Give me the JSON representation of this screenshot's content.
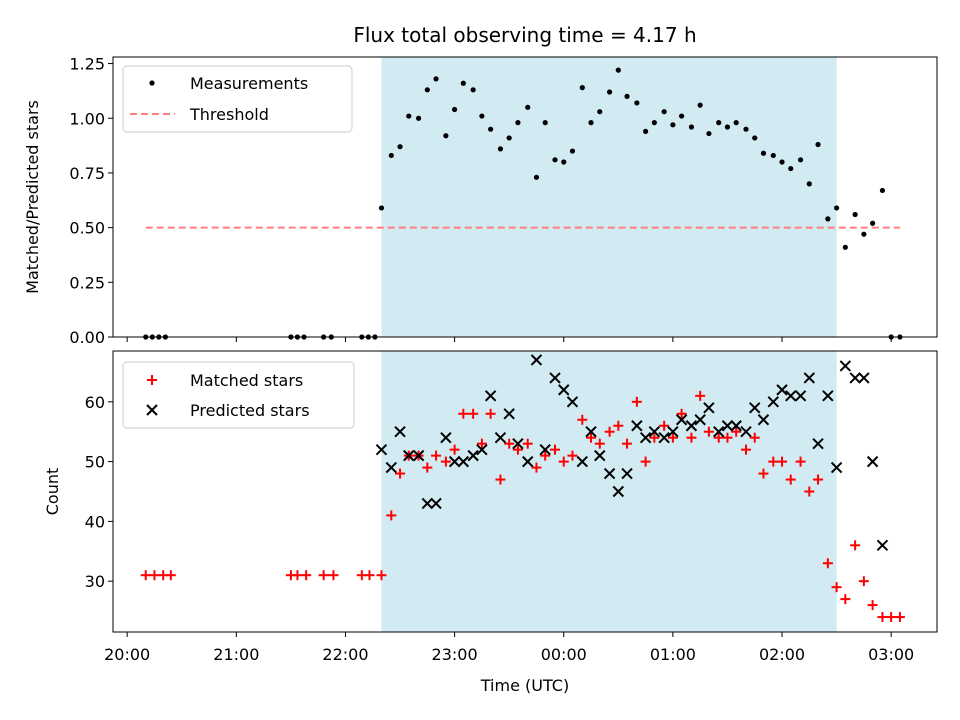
{
  "chart_data": {
    "type": "scatter",
    "title": "Flux total observing time = 4.17 h",
    "xlabel": "Time (UTC)",
    "x_unit": "hours relative to 00:00 UTC",
    "x_ticks": [
      {
        "value": -4,
        "label": "20:00"
      },
      {
        "value": -3,
        "label": "21:00"
      },
      {
        "value": -2,
        "label": "22:00"
      },
      {
        "value": -1,
        "label": "23:00"
      },
      {
        "value": 0,
        "label": "00:00"
      },
      {
        "value": 1,
        "label": "01:00"
      },
      {
        "value": 2,
        "label": "02:00"
      },
      {
        "value": 3,
        "label": "03:00"
      }
    ],
    "xlim": [
      -4.13,
      3.42
    ],
    "shaded_interval": {
      "start": -1.67,
      "end": 2.5,
      "color": "#add8e6"
    },
    "panels": [
      {
        "ylabel": "Matched/Predicted stars",
        "ylim": [
          0,
          1.28
        ],
        "y_ticks": [
          "0.00",
          "0.25",
          "0.50",
          "0.75",
          "1.00",
          "1.25"
        ],
        "y_tick_values": [
          0,
          0.25,
          0.5,
          0.75,
          1.0,
          1.25
        ],
        "legend": {
          "position": "top-left"
        },
        "series": [
          {
            "name": "Measurements",
            "marker": "dot",
            "color": "#000000",
            "points": [
              [
                -3.83,
                0
              ],
              [
                -3.77,
                0
              ],
              [
                -3.71,
                0
              ],
              [
                -3.65,
                0
              ],
              [
                -2.5,
                0
              ],
              [
                -2.44,
                0
              ],
              [
                -2.38,
                0
              ],
              [
                -2.2,
                0
              ],
              [
                -2.13,
                0
              ],
              [
                -1.85,
                0
              ],
              [
                -1.79,
                0
              ],
              [
                -1.73,
                0
              ],
              [
                -1.67,
                0.59
              ],
              [
                -1.58,
                0.83
              ],
              [
                -1.5,
                0.87
              ],
              [
                -1.42,
                1.01
              ],
              [
                -1.33,
                1.0
              ],
              [
                -1.25,
                1.13
              ],
              [
                -1.17,
                1.18
              ],
              [
                -1.08,
                0.92
              ],
              [
                -1.0,
                1.04
              ],
              [
                -0.92,
                1.16
              ],
              [
                -0.83,
                1.13
              ],
              [
                -0.75,
                1.01
              ],
              [
                -0.67,
                0.95
              ],
              [
                -0.58,
                0.86
              ],
              [
                -0.5,
                0.91
              ],
              [
                -0.42,
                0.98
              ],
              [
                -0.33,
                1.05
              ],
              [
                -0.25,
                0.73
              ],
              [
                -0.17,
                0.98
              ],
              [
                -0.08,
                0.81
              ],
              [
                0.0,
                0.8
              ],
              [
                0.08,
                0.85
              ],
              [
                0.17,
                1.14
              ],
              [
                0.25,
                0.98
              ],
              [
                0.33,
                1.03
              ],
              [
                0.42,
                1.12
              ],
              [
                0.5,
                1.22
              ],
              [
                0.58,
                1.1
              ],
              [
                0.67,
                1.07
              ],
              [
                0.75,
                0.94
              ],
              [
                0.83,
                0.98
              ],
              [
                0.92,
                1.03
              ],
              [
                1.0,
                0.97
              ],
              [
                1.08,
                1.01
              ],
              [
                1.17,
                0.96
              ],
              [
                1.25,
                1.06
              ],
              [
                1.33,
                0.93
              ],
              [
                1.42,
                0.98
              ],
              [
                1.5,
                0.96
              ],
              [
                1.58,
                0.98
              ],
              [
                1.67,
                0.95
              ],
              [
                1.75,
                0.91
              ],
              [
                1.83,
                0.84
              ],
              [
                1.92,
                0.83
              ],
              [
                2.0,
                0.8
              ],
              [
                2.08,
                0.77
              ],
              [
                2.17,
                0.81
              ],
              [
                2.25,
                0.7
              ],
              [
                2.33,
                0.88
              ],
              [
                2.42,
                0.54
              ],
              [
                2.5,
                0.59
              ],
              [
                2.58,
                0.41
              ],
              [
                2.67,
                0.56
              ],
              [
                2.75,
                0.47
              ],
              [
                2.83,
                0.52
              ],
              [
                2.92,
                0.67
              ],
              [
                3.0,
                0
              ],
              [
                3.08,
                0
              ]
            ]
          },
          {
            "name": "Threshold",
            "type": "line",
            "style": "dashed",
            "color": "#ff7f7f",
            "points": [
              [
                -3.83,
                0.5
              ],
              [
                3.08,
                0.5
              ]
            ]
          }
        ]
      },
      {
        "ylabel": "Count",
        "ylim": [
          21.5,
          68.5
        ],
        "y_ticks": [
          "30",
          "40",
          "50",
          "60"
        ],
        "y_tick_values": [
          30,
          40,
          50,
          60
        ],
        "legend": {
          "position": "top-left"
        },
        "series": [
          {
            "name": "Matched stars",
            "marker": "plus",
            "color": "#ff0000",
            "points": [
              [
                -3.83,
                31
              ],
              [
                -3.75,
                31
              ],
              [
                -3.67,
                31
              ],
              [
                -3.6,
                31
              ],
              [
                -2.5,
                31
              ],
              [
                -2.44,
                31
              ],
              [
                -2.36,
                31
              ],
              [
                -2.2,
                31
              ],
              [
                -2.11,
                31
              ],
              [
                -1.85,
                31
              ],
              [
                -1.78,
                31
              ],
              [
                -1.67,
                31
              ],
              [
                -1.58,
                41
              ],
              [
                -1.5,
                48
              ],
              [
                -1.42,
                51
              ],
              [
                -1.33,
                51
              ],
              [
                -1.25,
                49
              ],
              [
                -1.17,
                51
              ],
              [
                -1.08,
                50
              ],
              [
                -1.0,
                52
              ],
              [
                -0.92,
                58
              ],
              [
                -0.83,
                58
              ],
              [
                -0.75,
                53
              ],
              [
                -0.67,
                58
              ],
              [
                -0.58,
                47
              ],
              [
                -0.5,
                53
              ],
              [
                -0.42,
                52
              ],
              [
                -0.33,
                53
              ],
              [
                -0.25,
                49
              ],
              [
                -0.17,
                51
              ],
              [
                -0.08,
                52
              ],
              [
                0.0,
                50
              ],
              [
                0.08,
                51
              ],
              [
                0.17,
                57
              ],
              [
                0.25,
                54
              ],
              [
                0.33,
                53
              ],
              [
                0.42,
                55
              ],
              [
                0.5,
                56
              ],
              [
                0.58,
                53
              ],
              [
                0.67,
                60
              ],
              [
                0.75,
                50
              ],
              [
                0.83,
                54
              ],
              [
                0.92,
                56
              ],
              [
                1.0,
                54
              ],
              [
                1.08,
                58
              ],
              [
                1.17,
                54
              ],
              [
                1.25,
                61
              ],
              [
                1.33,
                55
              ],
              [
                1.42,
                54
              ],
              [
                1.5,
                54
              ],
              [
                1.58,
                55
              ],
              [
                1.67,
                52
              ],
              [
                1.75,
                54
              ],
              [
                1.83,
                48
              ],
              [
                1.92,
                50
              ],
              [
                2.0,
                50
              ],
              [
                2.08,
                47
              ],
              [
                2.17,
                50
              ],
              [
                2.25,
                45
              ],
              [
                2.33,
                47
              ],
              [
                2.42,
                33
              ],
              [
                2.5,
                29
              ],
              [
                2.58,
                27
              ],
              [
                2.67,
                36
              ],
              [
                2.75,
                30
              ],
              [
                2.83,
                26
              ],
              [
                2.92,
                24
              ],
              [
                3.0,
                24
              ],
              [
                3.08,
                24
              ]
            ]
          },
          {
            "name": "Predicted stars",
            "marker": "x",
            "color": "#000000",
            "points": [
              [
                -1.67,
                52
              ],
              [
                -1.58,
                49
              ],
              [
                -1.5,
                55
              ],
              [
                -1.42,
                51
              ],
              [
                -1.33,
                51
              ],
              [
                -1.25,
                43
              ],
              [
                -1.17,
                43
              ],
              [
                -1.08,
                54
              ],
              [
                -1.0,
                50
              ],
              [
                -0.92,
                50
              ],
              [
                -0.83,
                51
              ],
              [
                -0.75,
                52
              ],
              [
                -0.67,
                61
              ],
              [
                -0.58,
                54
              ],
              [
                -0.5,
                58
              ],
              [
                -0.42,
                53
              ],
              [
                -0.33,
                50
              ],
              [
                -0.25,
                67
              ],
              [
                -0.17,
                52
              ],
              [
                -0.08,
                64
              ],
              [
                0.0,
                62
              ],
              [
                0.08,
                60
              ],
              [
                0.17,
                50
              ],
              [
                0.25,
                55
              ],
              [
                0.33,
                51
              ],
              [
                0.42,
                48
              ],
              [
                0.5,
                45
              ],
              [
                0.58,
                48
              ],
              [
                0.67,
                56
              ],
              [
                0.75,
                54
              ],
              [
                0.83,
                55
              ],
              [
                0.92,
                54
              ],
              [
                1.0,
                55
              ],
              [
                1.08,
                57
              ],
              [
                1.17,
                56
              ],
              [
                1.25,
                57
              ],
              [
                1.33,
                59
              ],
              [
                1.42,
                55
              ],
              [
                1.5,
                56
              ],
              [
                1.58,
                56
              ],
              [
                1.67,
                55
              ],
              [
                1.75,
                59
              ],
              [
                1.83,
                57
              ],
              [
                1.92,
                60
              ],
              [
                2.0,
                62
              ],
              [
                2.08,
                61
              ],
              [
                2.17,
                61
              ],
              [
                2.25,
                64
              ],
              [
                2.33,
                53
              ],
              [
                2.42,
                61
              ],
              [
                2.5,
                49
              ],
              [
                2.58,
                66
              ],
              [
                2.67,
                64
              ],
              [
                2.75,
                64
              ],
              [
                2.83,
                50
              ],
              [
                2.92,
                36
              ]
            ]
          }
        ]
      }
    ]
  }
}
